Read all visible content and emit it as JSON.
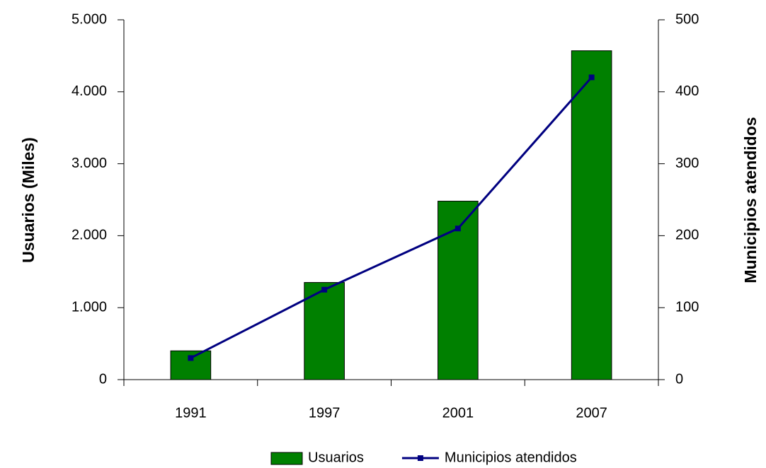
{
  "chart_data": {
    "type": "combo",
    "categories": [
      "1991",
      "1997",
      "2001",
      "2007"
    ],
    "ylabel": "Usuarios (Miles)",
    "y2label": "Municipios atendidos",
    "ylim": [
      0,
      5000
    ],
    "yticks": [
      0,
      {
        "value": 1000,
        "label": "1.000"
      },
      {
        "value": 2000,
        "label": "2.000"
      },
      {
        "value": 3000,
        "label": "3.000"
      },
      {
        "value": 4000,
        "label": "4.000"
      },
      {
        "value": 5000,
        "label": "5.000"
      }
    ],
    "y2lim": [
      0,
      500
    ],
    "y2ticks": [
      0,
      100,
      200,
      300,
      400,
      500
    ],
    "series": [
      {
        "name": "Usuarios",
        "type": "bar",
        "color": "#008000",
        "values": [
          400,
          1350,
          2480,
          4570
        ]
      },
      {
        "name": "Municipios atendidos",
        "type": "line",
        "axis": "y2",
        "color": "#000080",
        "values": [
          30,
          125,
          210,
          420
        ]
      }
    ]
  }
}
